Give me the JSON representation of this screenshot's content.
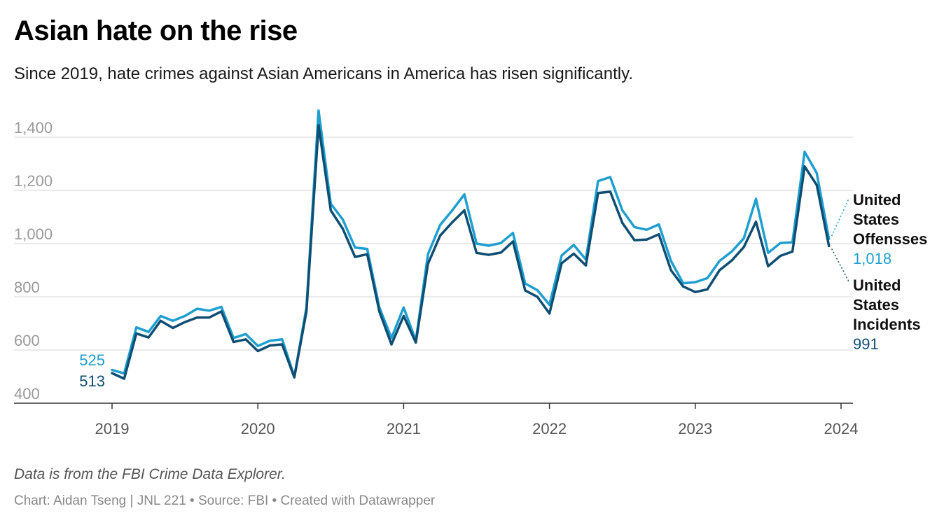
{
  "header": {
    "title": "Asian hate on the rise",
    "subtitle": "Since 2019, hate crimes against Asian Americans in America has risen significantly."
  },
  "footer": {
    "note": "Data is from the FBI Crime Data Explorer.",
    "byline": "Chart: Aidan Tseng | JNL 221 • Source: FBI • Created with Datawrapper"
  },
  "chart_data": {
    "type": "line",
    "title": "Asian hate on the rise",
    "subtitle": "Since 2019, hate crimes against Asian Americans in America has risen significantly.",
    "xlabel": "",
    "ylabel": "",
    "ylim": [
      400,
      1500
    ],
    "xlim": [
      "2018-09",
      "2024-01"
    ],
    "grid": true,
    "y_ticks": [
      {
        "value": 400,
        "label": "400"
      },
      {
        "value": 600,
        "label": "600"
      },
      {
        "value": 800,
        "label": "800"
      },
      {
        "value": 1000,
        "label": "1,000"
      },
      {
        "value": 1200,
        "label": "1,200"
      },
      {
        "value": 1400,
        "label": "1,400"
      }
    ],
    "x_ticks": [
      {
        "value": "2019-01",
        "label": "2019"
      },
      {
        "value": "2020-01",
        "label": "2020"
      },
      {
        "value": "2021-01",
        "label": "2021"
      },
      {
        "value": "2022-01",
        "label": "2022"
      },
      {
        "value": "2023-01",
        "label": "2023"
      },
      {
        "value": "2024-01",
        "label": "2024"
      }
    ],
    "x": [
      "2019-01",
      "2019-02",
      "2019-03",
      "2019-04",
      "2019-05",
      "2019-06",
      "2019-07",
      "2019-08",
      "2019-09",
      "2019-10",
      "2019-11",
      "2019-12",
      "2020-01",
      "2020-02",
      "2020-03",
      "2020-04",
      "2020-05",
      "2020-06",
      "2020-07",
      "2020-08",
      "2020-09",
      "2020-10",
      "2020-11",
      "2020-12",
      "2021-01",
      "2021-02",
      "2021-03",
      "2021-04",
      "2021-05",
      "2021-06",
      "2021-07",
      "2021-08",
      "2021-09",
      "2021-10",
      "2021-11",
      "2021-12",
      "2022-01",
      "2022-02",
      "2022-03",
      "2022-04",
      "2022-05",
      "2022-06",
      "2022-07",
      "2022-08",
      "2022-09",
      "2022-10",
      "2022-11",
      "2022-12",
      "2023-01",
      "2023-02",
      "2023-03",
      "2023-04",
      "2023-05",
      "2023-06",
      "2023-07",
      "2023-08",
      "2023-09",
      "2023-10",
      "2023-11",
      "2023-12"
    ],
    "series": [
      {
        "name": "United States Offensses",
        "color": "#1f9fcf",
        "end_label": "1,018",
        "start_label": "525",
        "values": [
          525,
          512,
          685,
          668,
          728,
          710,
          728,
          755,
          748,
          762,
          645,
          660,
          615,
          635,
          640,
          500,
          760,
          1500,
          1150,
          1090,
          985,
          980,
          760,
          645,
          760,
          635,
          960,
          1070,
          1125,
          1185,
          1000,
          992,
          1002,
          1040,
          850,
          825,
          770,
          955,
          995,
          940,
          1235,
          1250,
          1125,
          1062,
          1052,
          1072,
          935,
          851,
          855,
          870,
          935,
          970,
          1020,
          1168,
          965,
          1002,
          1005,
          1345,
          1265,
          1018
        ]
      },
      {
        "name": "United States Incidents",
        "color": "#0f4e73",
        "end_label": "991",
        "start_label": "513",
        "values": [
          513,
          492,
          662,
          647,
          710,
          683,
          705,
          722,
          722,
          745,
          630,
          640,
          596,
          617,
          621,
          497,
          745,
          1445,
          1125,
          1055,
          950,
          960,
          745,
          621,
          728,
          628,
          924,
          1030,
          1080,
          1125,
          965,
          958,
          966,
          1008,
          824,
          800,
          737,
          926,
          962,
          918,
          1190,
          1195,
          1078,
          1013,
          1015,
          1035,
          900,
          839,
          818,
          828,
          900,
          936,
          987,
          1082,
          915,
          954,
          970,
          1290,
          1220,
          991
        ]
      }
    ]
  }
}
